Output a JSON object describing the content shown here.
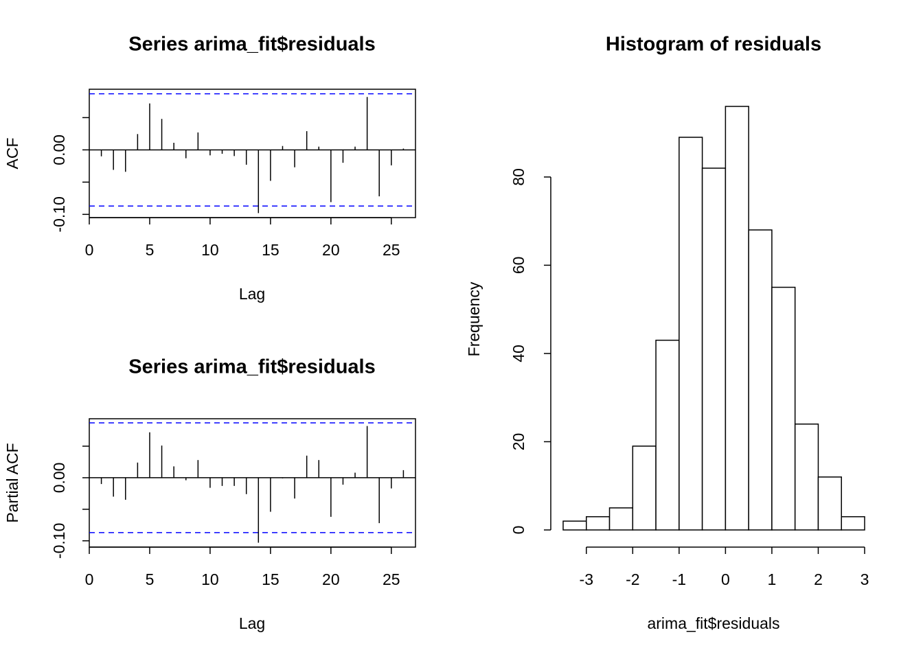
{
  "chart_data": [
    {
      "type": "acf",
      "title": "Series arima_fit$residuals",
      "xlabel": "Lag",
      "ylabel": "ACF",
      "x": [
        1,
        2,
        3,
        4,
        5,
        6,
        7,
        8,
        9,
        10,
        11,
        12,
        13,
        14,
        15,
        16,
        17,
        18,
        19,
        20,
        21,
        22,
        23,
        24,
        25,
        26
      ],
      "values": [
        -0.01,
        -0.031,
        -0.034,
        0.0245,
        0.072,
        0.048,
        0.011,
        -0.013,
        0.027,
        -0.0085,
        -0.006,
        -0.0096,
        -0.023,
        -0.098,
        -0.048,
        0.006,
        -0.027,
        0.029,
        0.005,
        -0.081,
        -0.02,
        0.005,
        0.082,
        -0.072,
        -0.024,
        0.002
      ],
      "color": "#000000",
      "ci": 0.087,
      "ci_color": "#0000ff",
      "xlim": [
        0,
        27
      ],
      "xticks": [
        0,
        5,
        10,
        15,
        20,
        25
      ],
      "ylim": [
        -0.105,
        0.094
      ],
      "yticks": [
        {
          "value": -0.1,
          "label": "-0.10"
        },
        {
          "value": 0,
          "label": "0.00"
        }
      ],
      "yticks_unlabeled": [
        -0.05,
        0.05
      ]
    },
    {
      "type": "acf",
      "title": "Series  arima_fit$residuals",
      "xlabel": "Lag",
      "ylabel": "Partial ACF",
      "x": [
        1,
        2,
        3,
        4,
        5,
        6,
        7,
        8,
        9,
        10,
        11,
        12,
        13,
        14,
        15,
        16,
        17,
        18,
        19,
        20,
        21,
        22,
        23,
        24,
        25,
        26
      ],
      "values": [
        -0.01,
        -0.03,
        -0.035,
        0.024,
        0.072,
        0.051,
        0.018,
        -0.004,
        0.028,
        -0.016,
        -0.013,
        -0.013,
        -0.026,
        -0.103,
        -0.054,
        -0.001,
        -0.033,
        0.035,
        0.028,
        -0.062,
        -0.011,
        0.008,
        0.082,
        -0.072,
        -0.017,
        0.012
      ],
      "color": "#000000",
      "ci": 0.087,
      "ci_color": "#0000ff",
      "xlim": [
        0,
        27
      ],
      "xticks": [
        0,
        5,
        10,
        15,
        20,
        25
      ],
      "ylim": [
        -0.11,
        0.0935
      ],
      "yticks": [
        {
          "value": -0.1,
          "label": "-0.10"
        },
        {
          "value": 0,
          "label": "0.00"
        }
      ],
      "yticks_unlabeled": [
        -0.05,
        0.05
      ]
    },
    {
      "type": "histogram",
      "title": "Histogram of residuals",
      "xlabel": "arima_fit$residuals",
      "ylabel": "Frequency",
      "bins": [
        -3.5,
        -3,
        -2.5,
        -2,
        -1.5,
        -1,
        -0.5,
        0,
        0.5,
        1,
        1.5,
        2,
        2.5,
        3
      ],
      "values": [
        2,
        3,
        5,
        19,
        43,
        89,
        82,
        96,
        68,
        55,
        24,
        12,
        3
      ],
      "color": "#ffffff",
      "edge_color": "#000000",
      "xlim": [
        -3.5,
        3
      ],
      "xticks": [
        -3,
        -2,
        -1,
        0,
        1,
        2,
        3
      ],
      "ylim": [
        0,
        96
      ],
      "yticks": [
        0,
        20,
        40,
        60,
        80
      ]
    }
  ]
}
